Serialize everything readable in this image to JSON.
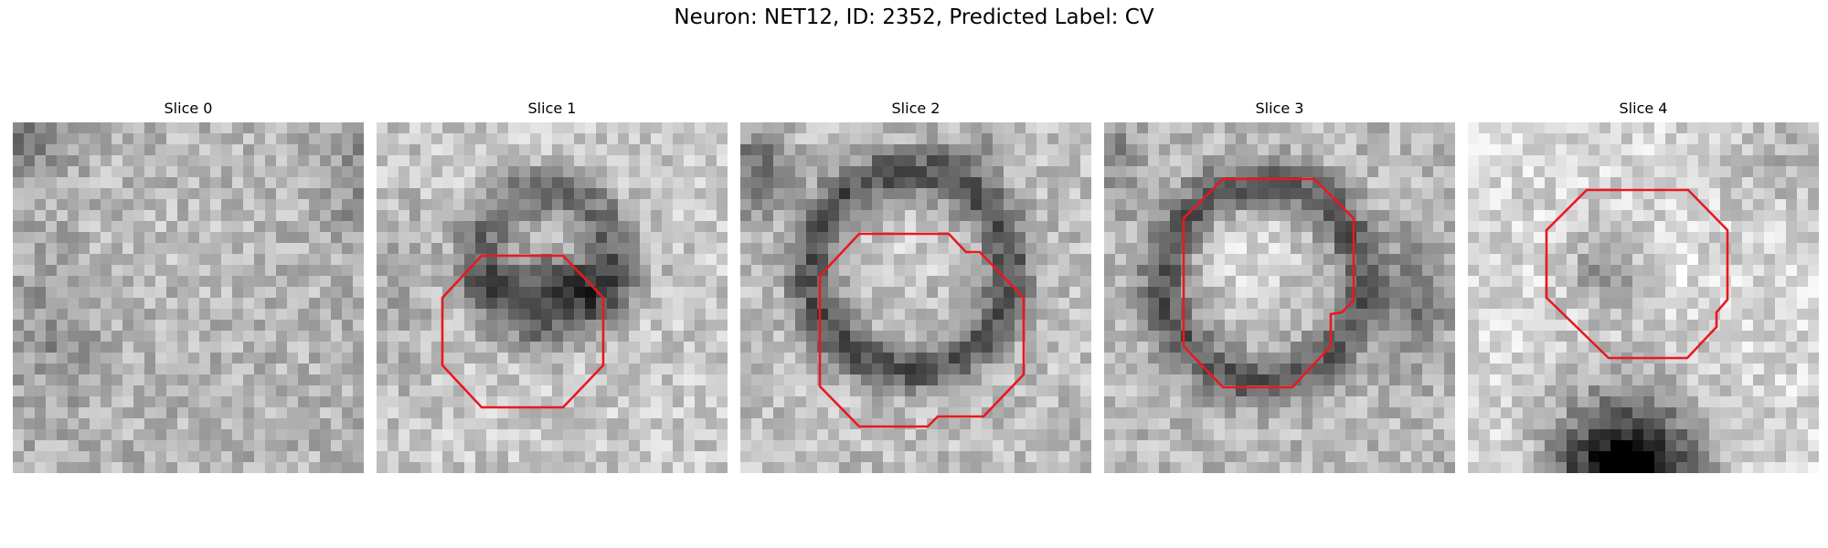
{
  "figure": {
    "title": "Neuron: NET12, ID: 2352, Predicted Label: CV"
  },
  "image_content": "five grayscale electron-microscopy-like patches (32x32 pixel grid) with red octagonal outline marking a predicted cell region",
  "outline_color": "#e8191f",
  "slices": [
    {
      "label": "Slice 0",
      "has_outline": false
    },
    {
      "label": "Slice 1",
      "has_outline": true
    },
    {
      "label": "Slice 2",
      "has_outline": true
    },
    {
      "label": "Slice 3",
      "has_outline": true
    },
    {
      "label": "Slice 4",
      "has_outline": true
    }
  ]
}
